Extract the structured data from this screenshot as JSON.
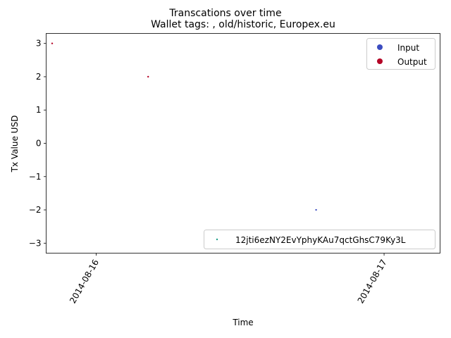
{
  "chart_data": {
    "type": "scatter",
    "suptitle": "Transcations over time",
    "title": "Wallet tags: , old/historic, Europex.eu",
    "xlabel": "Time",
    "ylabel": "Tx Value USD",
    "x_ticks": [
      "2014-08-16",
      "2014-08-17"
    ],
    "y_ticks": [
      -3,
      -2,
      -1,
      0,
      1,
      2,
      3
    ],
    "xlim": [
      "2014-08-15 19:50",
      "2014-08-17 04:40"
    ],
    "ylim": [
      -3.3,
      3.3
    ],
    "grid": false,
    "series": [
      {
        "name": "Output",
        "color": "#b40426",
        "points": [
          {
            "x": "2014-08-15 20:20",
            "y": 3
          },
          {
            "x": "2014-08-16 04:20",
            "y": 2
          }
        ]
      },
      {
        "name": "Input",
        "color": "#3b4cc0",
        "points": [
          {
            "x": "2014-08-16 18:20",
            "y": -2
          }
        ]
      }
    ],
    "legend_top": {
      "position": "upper right",
      "entries": [
        {
          "label": "Input",
          "color": "#3b4cc0"
        },
        {
          "label": "Output",
          "color": "#b40426"
        }
      ]
    },
    "legend_bottom": {
      "position": "lower right",
      "entries": [
        {
          "label": "12jti6ezNY2EvYphyKAu7qctGhsC79Ky3L",
          "color": "#1f9e89"
        }
      ]
    }
  }
}
